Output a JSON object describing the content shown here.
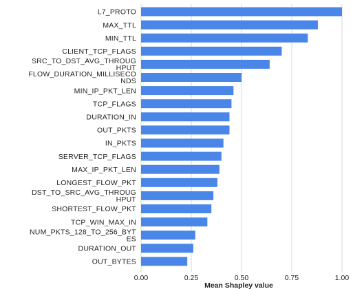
{
  "chart_data": {
    "type": "bar",
    "orientation": "horizontal",
    "categories": [
      [
        "L7_PROTO"
      ],
      [
        "MAX_TTL"
      ],
      [
        "MIN_TTL"
      ],
      [
        "CLIENT_TCP_FLAGS"
      ],
      [
        "SRC_TO_DST_AVG_THROUG",
        "HPUT"
      ],
      [
        "FLOW_DURATION_MILLISECO",
        "NDS"
      ],
      [
        "MIN_IP_PKT_LEN"
      ],
      [
        "TCP_FLAGS"
      ],
      [
        "DURATION_IN"
      ],
      [
        "OUT_PKTS"
      ],
      [
        "IN_PKTS"
      ],
      [
        "SERVER_TCP_FLAGS"
      ],
      [
        "MAX_IP_PKT_LEN"
      ],
      [
        "LONGEST_FLOW_PKT"
      ],
      [
        "DST_TO_SRC_AVG_THROUG",
        "HPUT"
      ],
      [
        "SHORTEST_FLOW_PKT"
      ],
      [
        "TCP_WIN_MAX_IN"
      ],
      [
        "NUM_PKTS_128_TO_256_BYT",
        "ES"
      ],
      [
        "DURATION_OUT"
      ],
      [
        "OUT_BYTES"
      ]
    ],
    "values": [
      1.0,
      0.88,
      0.83,
      0.7,
      0.64,
      0.5,
      0.46,
      0.45,
      0.44,
      0.44,
      0.41,
      0.4,
      0.39,
      0.38,
      0.36,
      0.35,
      0.33,
      0.27,
      0.26,
      0.23
    ],
    "xlabel": "Mean Shapley value",
    "xlim": [
      0,
      1.0
    ],
    "xticks": [
      "0.00",
      "0.25",
      "0.50",
      "0.75",
      "1.00"
    ],
    "xtick_values": [
      0,
      0.25,
      0.5,
      0.75,
      1.0
    ],
    "grid": "vertical",
    "bar_color": "#4a86e8",
    "grid_color": "#d9d9d9"
  }
}
